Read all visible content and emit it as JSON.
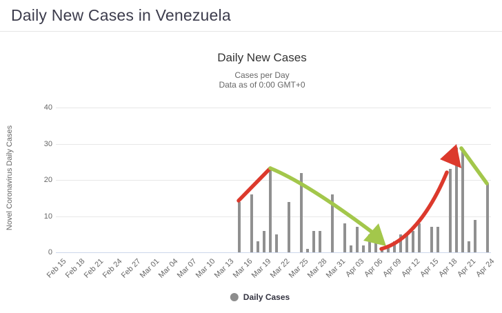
{
  "page": {
    "title": "Daily New Cases in Venezuela"
  },
  "chart": {
    "title": "Daily New Cases",
    "subtitle1": "Cases per Day",
    "subtitle2": "Data as of 0:00 GMT+0",
    "y_axis_title": "Novel Coronavirus Daily Cases",
    "legend_label": "Daily Cases"
  },
  "colors": {
    "bar": "#909090",
    "legend_marker": "#8d8d8d",
    "grid": "#e7e7e7",
    "axis_line": "#ccd6eb",
    "title_text": "#3c3c4c",
    "chart_text": "#333333",
    "muted_text": "#666666"
  },
  "chart_data": {
    "type": "bar",
    "title": "Daily New Cases",
    "subtitle": [
      "Cases per Day",
      "Data as of 0:00 GMT+0"
    ],
    "xlabel": "",
    "ylabel": "Novel Coronavirus Daily Cases",
    "ylim": [
      0,
      40
    ],
    "yticks": [
      0,
      10,
      20,
      30,
      40
    ],
    "grid": "horizontal",
    "legend_position": "bottom",
    "legend_entries": [
      "Daily Cases"
    ],
    "tick_every": 3,
    "dates": [
      "Feb 15",
      "Feb 16",
      "Feb 17",
      "Feb 18",
      "Feb 19",
      "Feb 20",
      "Feb 21",
      "Feb 22",
      "Feb 23",
      "Feb 24",
      "Feb 25",
      "Feb 26",
      "Feb 27",
      "Feb 28",
      "Feb 29",
      "Mar 01",
      "Mar 02",
      "Mar 03",
      "Mar 04",
      "Mar 05",
      "Mar 06",
      "Mar 07",
      "Mar 08",
      "Mar 09",
      "Mar 10",
      "Mar 11",
      "Mar 12",
      "Mar 13",
      "Mar 14",
      "Mar 15",
      "Mar 16",
      "Mar 17",
      "Mar 18",
      "Mar 19",
      "Mar 20",
      "Mar 21",
      "Mar 22",
      "Mar 23",
      "Mar 24",
      "Mar 25",
      "Mar 26",
      "Mar 27",
      "Mar 28",
      "Mar 29",
      "Mar 30",
      "Mar 31",
      "Apr 01",
      "Apr 02",
      "Apr 03",
      "Apr 04",
      "Apr 05",
      "Apr 06",
      "Apr 07",
      "Apr 08",
      "Apr 09",
      "Apr 10",
      "Apr 11",
      "Apr 12",
      "Apr 13",
      "Apr 14",
      "Apr 15",
      "Apr 16",
      "Apr 17",
      "Apr 18",
      "Apr 19",
      "Apr 20",
      "Apr 21",
      "Apr 22",
      "Apr 23",
      "Apr 24"
    ],
    "values": [
      0,
      0,
      0,
      0,
      0,
      0,
      0,
      0,
      0,
      0,
      0,
      0,
      0,
      0,
      0,
      0,
      0,
      0,
      0,
      0,
      0,
      0,
      0,
      0,
      0,
      0,
      0,
      0,
      0,
      14,
      0,
      16,
      3,
      6,
      23,
      5,
      0,
      14,
      0,
      22,
      1,
      6,
      6,
      0,
      16,
      0,
      8,
      2,
      7,
      2,
      5,
      6,
      1,
      2,
      3,
      5,
      5,
      6,
      8,
      0,
      7,
      7,
      0,
      23,
      29,
      28,
      3,
      9,
      0,
      19
    ],
    "annotations": [
      {
        "name": "rising-trend-1",
        "type": "line",
        "color": "#dc392c",
        "from": "Mar 15",
        "to": "Mar 20"
      },
      {
        "name": "falling-trend-1",
        "type": "arrow",
        "color": "#a3c74b",
        "from": "Mar 20",
        "to": "Apr 06"
      },
      {
        "name": "rising-trend-2",
        "type": "arrow",
        "color": "#dc392c",
        "from": "Apr 08",
        "to": "Apr 19"
      },
      {
        "name": "falling-trend-2",
        "type": "line",
        "color": "#a3c74b",
        "from": "Apr 20",
        "to": "Apr 24"
      }
    ]
  }
}
